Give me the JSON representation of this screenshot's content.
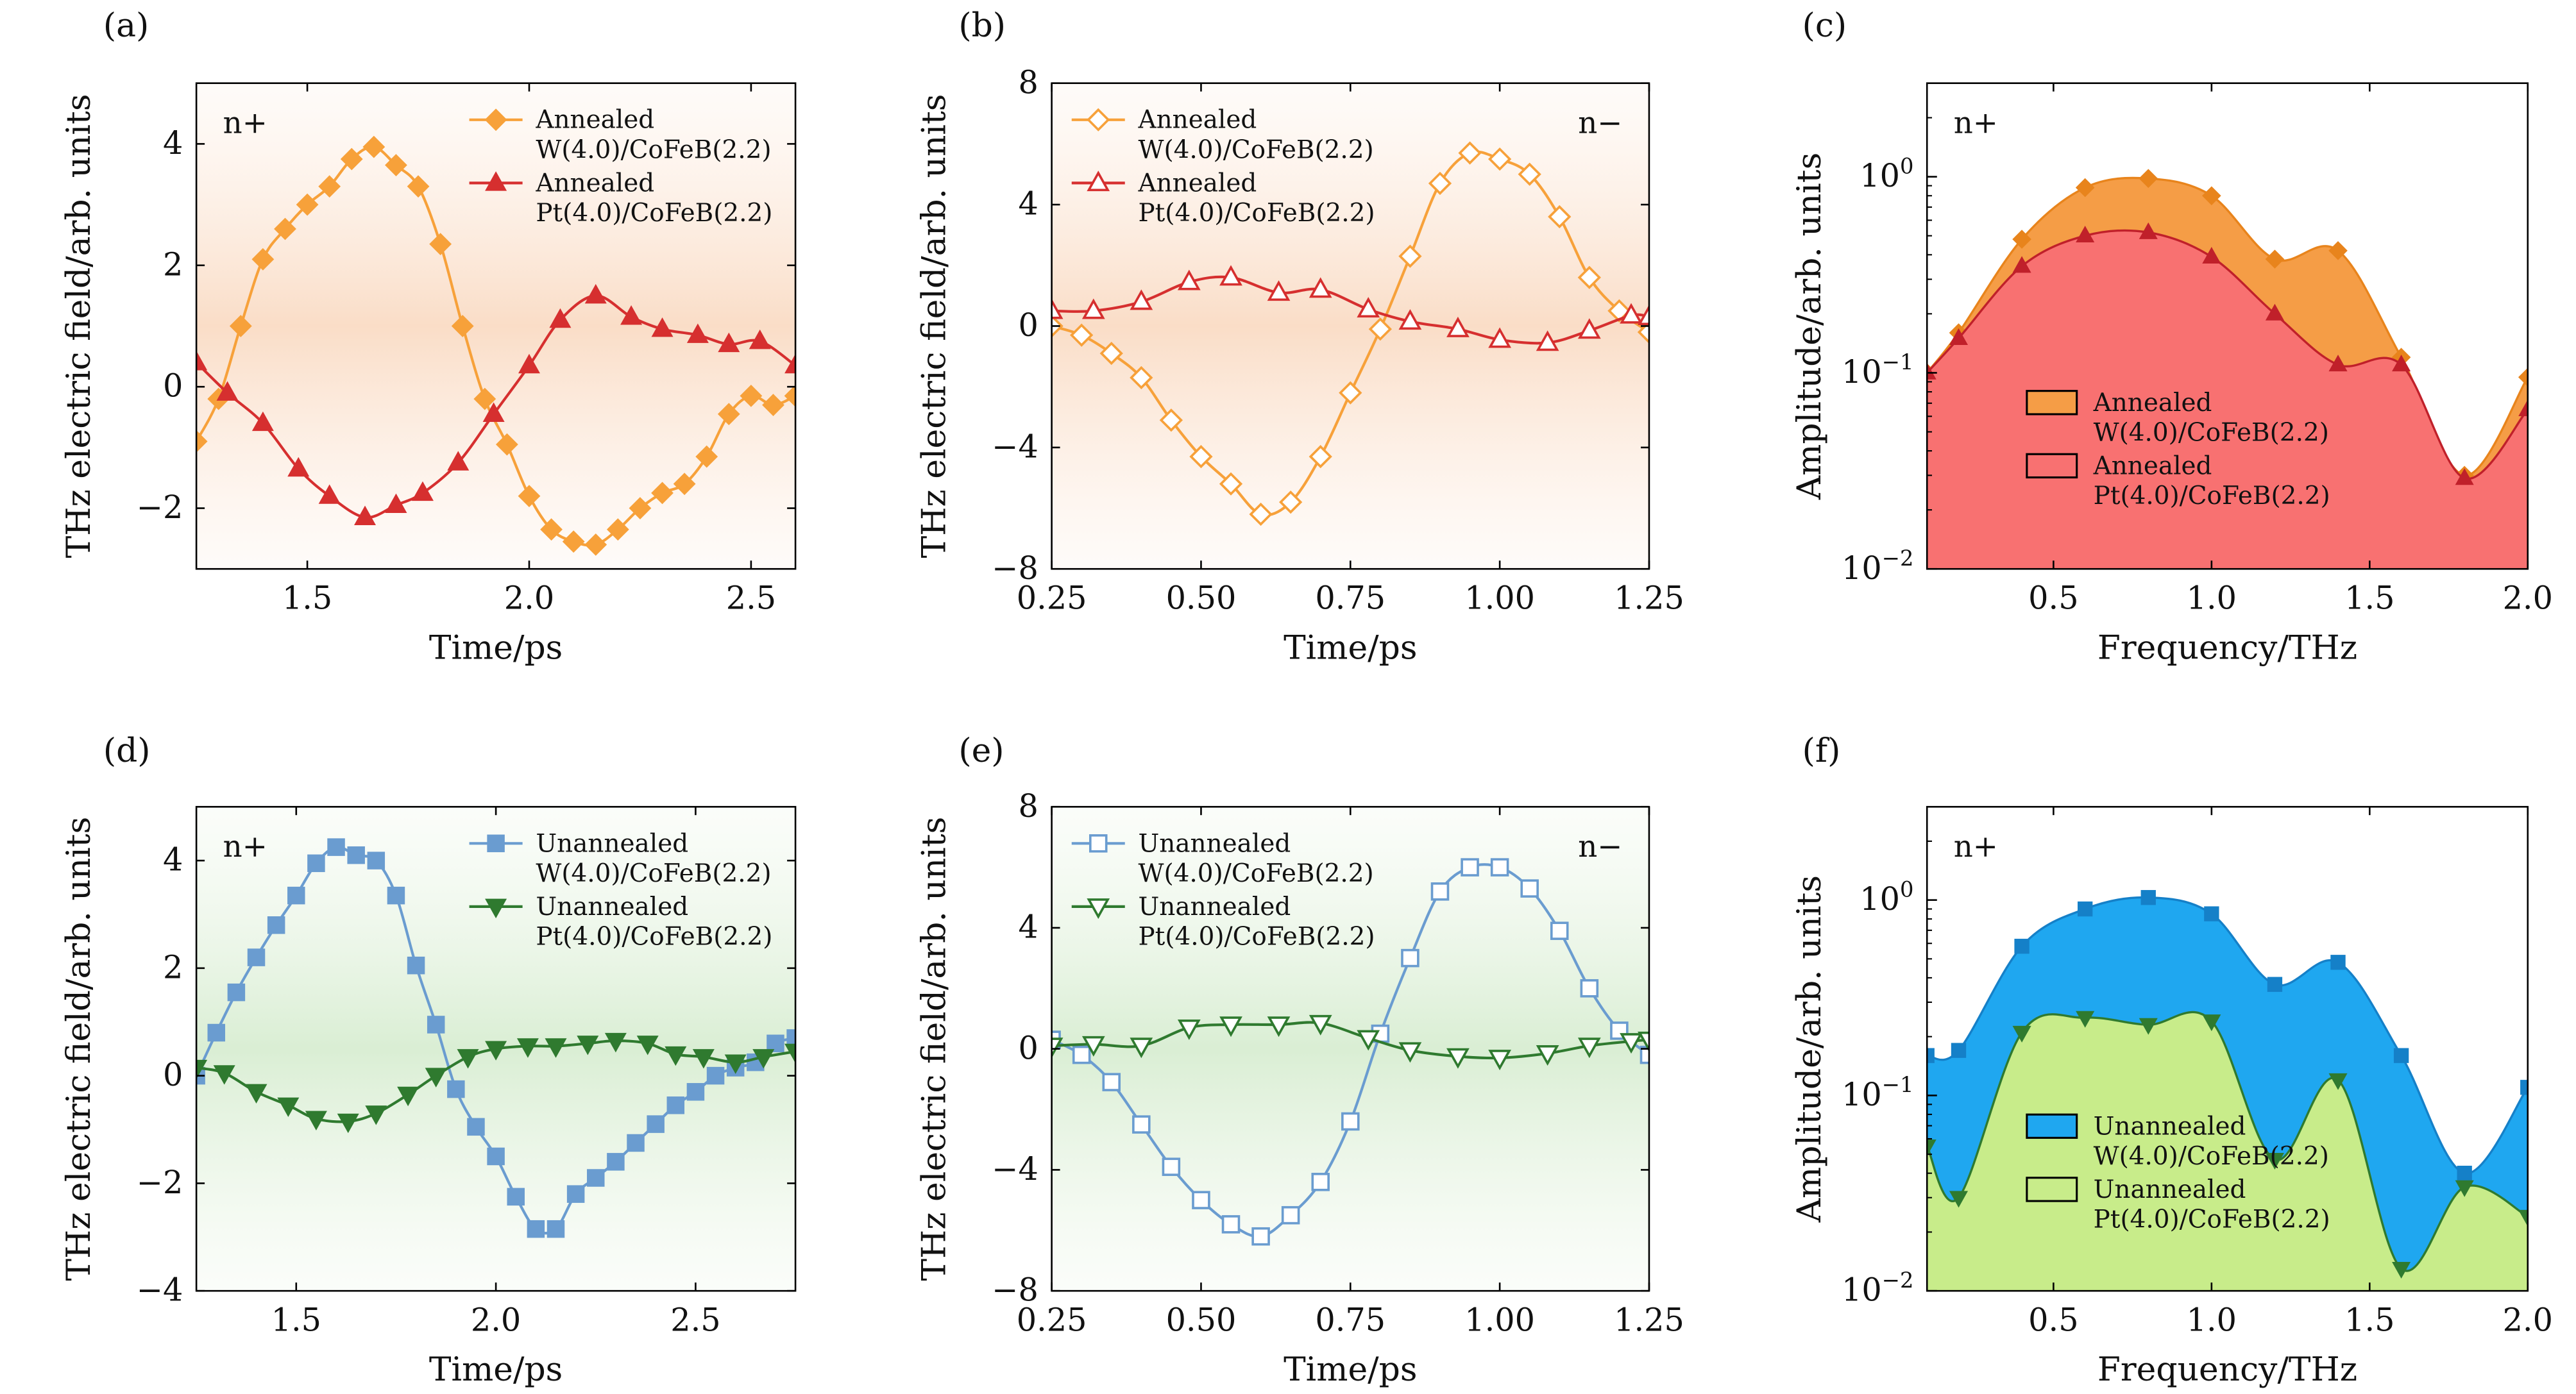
{
  "chart_data": [
    {
      "panel": "(a)",
      "type": "line",
      "tag": "n+",
      "xlabel": "Time/ps",
      "ylabel": "THz electric field/arb. units",
      "xlim": [
        1.25,
        2.6
      ],
      "ylim": [
        -3.0,
        5.0
      ],
      "xticks": [
        1.5,
        2.0,
        2.5
      ],
      "xtick_labels": [
        "1.5",
        "2.0",
        "2.5"
      ],
      "yticks": [
        -2,
        0,
        2,
        4
      ],
      "ytick_labels": [
        "−2",
        "0",
        "2",
        "4"
      ],
      "background": "orange-gradient",
      "legend_position": "top-right",
      "series": [
        {
          "name_lines": [
            "Annealed",
            "W(4.0)/CoFeB(2.2)"
          ],
          "color": "#f7a13a",
          "marker": "diamond",
          "fill": true,
          "x": [
            1.25,
            1.3,
            1.35,
            1.4,
            1.45,
            1.5,
            1.55,
            1.6,
            1.65,
            1.7,
            1.75,
            1.8,
            1.85,
            1.9,
            1.95,
            2.0,
            2.05,
            2.1,
            2.15,
            2.2,
            2.25,
            2.3,
            2.35,
            2.4,
            2.45,
            2.5,
            2.55,
            2.6
          ],
          "y": [
            -0.9,
            -0.2,
            1.0,
            2.1,
            2.6,
            3.0,
            3.3,
            3.75,
            3.95,
            3.65,
            3.3,
            2.35,
            1.0,
            -0.2,
            -0.95,
            -1.8,
            -2.35,
            -2.55,
            -2.6,
            -2.35,
            -2.0,
            -1.75,
            -1.6,
            -1.15,
            -0.45,
            -0.15,
            -0.3,
            -0.15
          ]
        },
        {
          "name_lines": [
            "Annealed",
            "Pt(4.0)/CoFeB(2.2)"
          ],
          "color": "#d62f2f",
          "marker": "triangle-up",
          "fill": true,
          "x": [
            1.25,
            1.32,
            1.4,
            1.48,
            1.55,
            1.63,
            1.7,
            1.76,
            1.84,
            1.92,
            2.0,
            2.07,
            2.15,
            2.23,
            2.3,
            2.38,
            2.45,
            2.52,
            2.6
          ],
          "y": [
            0.4,
            -0.1,
            -0.6,
            -1.35,
            -1.8,
            -2.15,
            -1.95,
            -1.75,
            -1.25,
            -0.45,
            0.35,
            1.1,
            1.5,
            1.15,
            0.95,
            0.85,
            0.7,
            0.75,
            0.35
          ]
        }
      ]
    },
    {
      "panel": "(b)",
      "type": "line",
      "tag": "n−",
      "xlabel": "Time/ps",
      "ylabel": "THz electric field/arb. units",
      "xlim": [
        0.25,
        1.25
      ],
      "ylim": [
        -8,
        8
      ],
      "xticks": [
        0.25,
        0.5,
        0.75,
        1.0,
        1.25
      ],
      "xtick_labels": [
        "0.25",
        "0.50",
        "0.75",
        "1.00",
        "1.25"
      ],
      "yticks": [
        -8,
        -4,
        0,
        4,
        8
      ],
      "ytick_labels": [
        "−8",
        "−4",
        "0",
        "4",
        "8"
      ],
      "background": "orange-gradient",
      "legend_position": "top-left",
      "series": [
        {
          "name_lines": [
            "Annealed",
            "W(4.0)/CoFeB(2.2)"
          ],
          "color": "#f7a13a",
          "marker": "diamond",
          "fill": false,
          "x": [
            0.25,
            0.3,
            0.35,
            0.4,
            0.45,
            0.5,
            0.55,
            0.6,
            0.65,
            0.7,
            0.75,
            0.8,
            0.85,
            0.9,
            0.95,
            1.0,
            1.05,
            1.1,
            1.15,
            1.2,
            1.25
          ],
          "y": [
            0.0,
            -0.3,
            -0.9,
            -1.7,
            -3.1,
            -4.3,
            -5.2,
            -6.2,
            -5.8,
            -4.3,
            -2.2,
            -0.1,
            2.3,
            4.7,
            5.7,
            5.5,
            5.0,
            3.6,
            1.6,
            0.5,
            -0.2
          ]
        },
        {
          "name_lines": [
            "Annealed",
            "Pt(4.0)/CoFeB(2.2)"
          ],
          "color": "#d62f2f",
          "marker": "triangle-up",
          "fill": false,
          "x": [
            0.25,
            0.32,
            0.4,
            0.48,
            0.55,
            0.63,
            0.7,
            0.78,
            0.85,
            0.93,
            1.0,
            1.08,
            1.15,
            1.22,
            1.25
          ],
          "y": [
            0.5,
            0.5,
            0.8,
            1.45,
            1.6,
            1.1,
            1.2,
            0.55,
            0.15,
            -0.1,
            -0.45,
            -0.55,
            -0.15,
            0.35,
            0.3
          ]
        }
      ]
    },
    {
      "panel": "(c)",
      "type": "area",
      "tag": "n+",
      "xlabel": "Frequency/THz",
      "ylabel": "Amplitude/arb. units",
      "xlim": [
        0.1,
        2.0
      ],
      "ylim": [
        0.01,
        3.0
      ],
      "yscale": "log",
      "xticks": [
        0.5,
        1.0,
        1.5,
        2.0
      ],
      "xtick_labels": [
        "0.5",
        "1.0",
        "1.5",
        "2.0"
      ],
      "yticks": [
        0.01,
        0.1,
        1.0
      ],
      "ytick_base": "10",
      "ytick_exponents": [
        "−2",
        "−1",
        "0"
      ],
      "legend_position": "bottom-left",
      "series": [
        {
          "name_lines": [
            "Annealed",
            "W(4.0)/CoFeB(2.2)"
          ],
          "color": "#f59d46",
          "line_color": "#e8841c",
          "marker": "diamond",
          "x": [
            0.1,
            0.2,
            0.4,
            0.6,
            0.8,
            1.0,
            1.2,
            1.4,
            1.6,
            1.8,
            2.0
          ],
          "y": [
            0.1,
            0.16,
            0.48,
            0.88,
            0.98,
            0.8,
            0.38,
            0.42,
            0.12,
            0.03,
            0.095
          ]
        },
        {
          "name_lines": [
            "Annealed",
            "Pt(4.0)/CoFeB(2.2)"
          ],
          "color": "#f87171",
          "line_color": "#c0202a",
          "marker": "triangle-up",
          "x": [
            0.1,
            0.2,
            0.4,
            0.6,
            0.8,
            1.0,
            1.2,
            1.4,
            1.6,
            1.8,
            2.0
          ],
          "y": [
            0.1,
            0.15,
            0.35,
            0.5,
            0.52,
            0.39,
            0.2,
            0.11,
            0.11,
            0.029,
            0.065
          ]
        }
      ]
    },
    {
      "panel": "(d)",
      "type": "line",
      "tag": "n+",
      "xlabel": "Time/ps",
      "ylabel": "THz electric field/arb. units",
      "xlim": [
        1.25,
        2.75
      ],
      "ylim": [
        -4,
        5
      ],
      "xticks": [
        1.5,
        2.0,
        2.5
      ],
      "xtick_labels": [
        "1.5",
        "2.0",
        "2.5"
      ],
      "yticks": [
        -4,
        -2,
        0,
        2,
        4
      ],
      "ytick_labels": [
        "−4",
        "−2",
        "0",
        "2",
        "4"
      ],
      "background": "green-gradient",
      "legend_position": "top-right",
      "series": [
        {
          "name_lines": [
            "Unannealed",
            "W(4.0)/CoFeB(2.2)"
          ],
          "color": "#6a9cd0",
          "marker": "square",
          "fill": true,
          "x": [
            1.25,
            1.3,
            1.35,
            1.4,
            1.45,
            1.5,
            1.55,
            1.6,
            1.65,
            1.7,
            1.75,
            1.8,
            1.85,
            1.9,
            1.95,
            2.0,
            2.05,
            2.1,
            2.15,
            2.2,
            2.25,
            2.3,
            2.35,
            2.4,
            2.45,
            2.5,
            2.55,
            2.6,
            2.65,
            2.7,
            2.75
          ],
          "y": [
            0.0,
            0.8,
            1.55,
            2.2,
            2.8,
            3.35,
            3.95,
            4.25,
            4.1,
            4.0,
            3.35,
            2.05,
            0.95,
            -0.25,
            -0.95,
            -1.5,
            -2.25,
            -2.85,
            -2.85,
            -2.2,
            -1.9,
            -1.6,
            -1.25,
            -0.9,
            -0.55,
            -0.3,
            0.0,
            0.15,
            0.25,
            0.6,
            0.7
          ]
        },
        {
          "name_lines": [
            "Unannealed",
            "Pt(4.0)/CoFeB(2.2)"
          ],
          "color": "#2f7a2f",
          "marker": "triangle-down",
          "fill": true,
          "x": [
            1.25,
            1.32,
            1.4,
            1.48,
            1.55,
            1.63,
            1.7,
            1.78,
            1.85,
            1.93,
            2.0,
            2.08,
            2.15,
            2.23,
            2.3,
            2.38,
            2.45,
            2.52,
            2.6,
            2.67,
            2.75
          ],
          "y": [
            0.15,
            0.05,
            -0.3,
            -0.55,
            -0.8,
            -0.85,
            -0.7,
            -0.35,
            0.0,
            0.35,
            0.5,
            0.55,
            0.55,
            0.6,
            0.65,
            0.6,
            0.4,
            0.35,
            0.25,
            0.35,
            0.45
          ]
        }
      ]
    },
    {
      "panel": "(e)",
      "type": "line",
      "tag": "n−",
      "xlabel": "Time/ps",
      "ylabel": "THz electric field/arb. units",
      "xlim": [
        0.25,
        1.25
      ],
      "ylim": [
        -8,
        8
      ],
      "xticks": [
        0.25,
        0.5,
        0.75,
        1.0,
        1.25
      ],
      "xtick_labels": [
        "0.25",
        "0.50",
        "0.75",
        "1.00",
        "1.25"
      ],
      "yticks": [
        -8,
        -4,
        0,
        4,
        8
      ],
      "ytick_labels": [
        "−8",
        "−4",
        "0",
        "4",
        "8"
      ],
      "background": "green-gradient",
      "legend_position": "top-left",
      "series": [
        {
          "name_lines": [
            "Unannealed",
            "W(4.0)/CoFeB(2.2)"
          ],
          "color": "#6a9cd0",
          "marker": "square",
          "fill": false,
          "x": [
            0.25,
            0.3,
            0.35,
            0.4,
            0.45,
            0.5,
            0.55,
            0.6,
            0.65,
            0.7,
            0.75,
            0.8,
            0.85,
            0.9,
            0.95,
            1.0,
            1.05,
            1.1,
            1.15,
            1.2,
            1.25
          ],
          "y": [
            0.3,
            -0.2,
            -1.1,
            -2.5,
            -3.9,
            -5.0,
            -5.8,
            -6.2,
            -5.5,
            -4.4,
            -2.4,
            0.5,
            3.0,
            5.2,
            6.0,
            6.0,
            5.3,
            3.9,
            2.0,
            0.6,
            -0.2
          ]
        },
        {
          "name_lines": [
            "Unannealed",
            "Pt(4.0)/CoFeB(2.2)"
          ],
          "color": "#2f7a2f",
          "marker": "triangle-down",
          "fill": false,
          "x": [
            0.25,
            0.32,
            0.4,
            0.48,
            0.55,
            0.63,
            0.7,
            0.78,
            0.85,
            0.93,
            1.0,
            1.08,
            1.15,
            1.22,
            1.25
          ],
          "y": [
            0.1,
            0.15,
            0.1,
            0.7,
            0.8,
            0.8,
            0.85,
            0.35,
            -0.05,
            -0.25,
            -0.3,
            -0.15,
            0.1,
            0.25,
            0.3
          ]
        }
      ]
    },
    {
      "panel": "(f)",
      "type": "area",
      "tag": "n+",
      "xlabel": "Frequency/THz",
      "ylabel": "Amplitude/arb. units",
      "xlim": [
        0.1,
        2.0
      ],
      "ylim": [
        0.01,
        3.0
      ],
      "yscale": "log",
      "xticks": [
        0.5,
        1.0,
        1.5,
        2.0
      ],
      "xtick_labels": [
        "0.5",
        "1.0",
        "1.5",
        "2.0"
      ],
      "yticks": [
        0.01,
        0.1,
        1.0
      ],
      "ytick_base": "10",
      "ytick_exponents": [
        "−2",
        "−1",
        "0"
      ],
      "legend_position": "bottom-left",
      "series": [
        {
          "name_lines": [
            "Unannealed",
            "W(4.0)/CoFeB(2.2)"
          ],
          "color": "#1fa7f0",
          "line_color": "#1580c8",
          "marker": "square",
          "x": [
            0.1,
            0.2,
            0.4,
            0.6,
            0.8,
            1.0,
            1.2,
            1.4,
            1.6,
            1.8,
            2.0
          ],
          "y": [
            0.16,
            0.17,
            0.58,
            0.9,
            1.03,
            0.85,
            0.37,
            0.48,
            0.16,
            0.04,
            0.11
          ]
        },
        {
          "name_lines": [
            "Unannealed",
            "Pt(4.0)/CoFeB(2.2)"
          ],
          "color": "#c8ec8a",
          "line_color": "#2f7a2f",
          "marker": "triangle-down",
          "x": [
            0.1,
            0.2,
            0.4,
            0.6,
            0.8,
            1.0,
            1.2,
            1.4,
            1.6,
            1.8,
            2.0
          ],
          "y": [
            0.055,
            0.03,
            0.21,
            0.25,
            0.23,
            0.24,
            0.047,
            0.12,
            0.013,
            0.034,
            0.024
          ]
        }
      ]
    }
  ]
}
